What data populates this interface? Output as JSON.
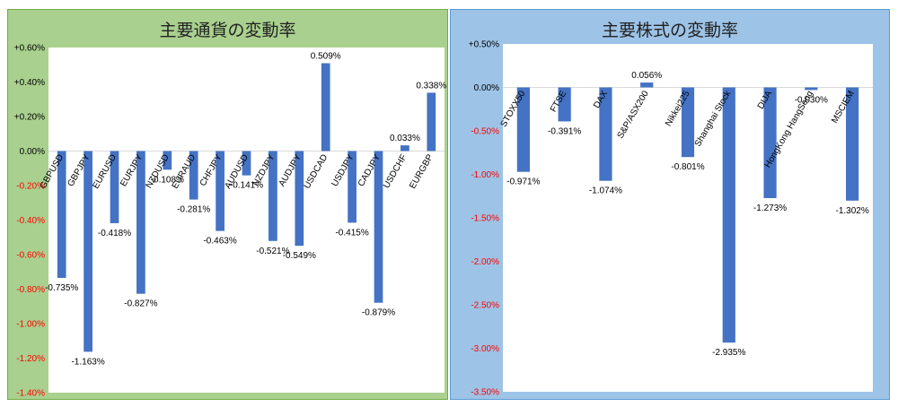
{
  "charts": [
    {
      "title": "主要通貨の変動率",
      "chart_data": {
        "type": "bar",
        "title": "主要通貨の変動率",
        "categories": [
          "GBPUSD",
          "GBPJPY",
          "EURUSD",
          "EURJPY",
          "NZDUSD",
          "EURAUD",
          "CHFJPY",
          "AUDUSD",
          "NZDJPY",
          "AUDJPY",
          "USDCAD",
          "USDJPY",
          "CADJPY",
          "USDCHF",
          "EURGBP"
        ],
        "values": [
          -0.735,
          -1.163,
          -0.418,
          -0.827,
          -0.108,
          -0.281,
          -0.463,
          -0.141,
          -0.521,
          -0.549,
          0.509,
          -0.415,
          -0.879,
          0.033,
          0.338
        ],
        "data_labels": [
          "-0.735%",
          "-1.163%",
          "-0.418%",
          "-0.827%",
          "-0.108%",
          "-0.281%",
          "-0.463%",
          "-0.141%",
          "-0.521%",
          "-0.549%",
          "0.509%",
          "-0.415%",
          "-0.879%",
          "0.033%",
          "0.338%"
        ],
        "ylim": [
          -1.4,
          0.6
        ],
        "yticks": [
          0.6,
          0.4,
          0.2,
          0,
          -0.2,
          -0.4,
          -0.6,
          -0.8,
          -1.0,
          -1.2,
          -1.4
        ],
        "ytick_labels": [
          "+0.60%",
          "+0.40%",
          "+0.20%",
          "0.00%",
          "-0.20%",
          "-0.40%",
          "-0.60%",
          "-0.80%",
          "-1.00%",
          "-1.20%",
          "-1.40%"
        ],
        "ytick_colors": [
          "#000000",
          "#000000",
          "#000000",
          "#000000",
          "#ff0000",
          "#ff0000",
          "#ff0000",
          "#ff0000",
          "#ff0000",
          "#ff0000",
          "#ff0000"
        ],
        "bar_color": "#4472c4",
        "grid": false
      }
    },
    {
      "title": "主要株式の変動率",
      "chart_data": {
        "type": "bar",
        "title": "主要株式の変動率",
        "categories": [
          "STOXX50",
          "FTSE",
          "DAX",
          "S&P/ASX200",
          "Nikkei225",
          "Shanghai Stock",
          "DIJA",
          "HongKong HangSeng",
          "MSCIEM"
        ],
        "values": [
          -0.971,
          -0.391,
          -1.074,
          0.056,
          -0.801,
          -2.935,
          -1.273,
          -0.03,
          -1.302
        ],
        "data_labels": [
          "-0.971%",
          "-0.391%",
          "-1.074%",
          "0.056%",
          "-0.801%",
          "-2.935%",
          "-1.273%",
          "-0.030%",
          "-1.302%"
        ],
        "ylim": [
          -3.5,
          0.5
        ],
        "yticks": [
          0.5,
          0,
          -0.5,
          -1.0,
          -1.5,
          -2.0,
          -2.5,
          -3.0,
          -3.5
        ],
        "ytick_labels": [
          "+0.50%",
          "0.00%",
          "-0.50%",
          "-1.00%",
          "-1.50%",
          "-2.00%",
          "-2.50%",
          "-3.00%",
          "-3.50%"
        ],
        "ytick_colors": [
          "#000000",
          "#000000",
          "#ff0000",
          "#ff0000",
          "#ff0000",
          "#ff0000",
          "#ff0000",
          "#ff0000",
          "#ff0000"
        ],
        "bar_color": "#4472c4",
        "grid": false
      }
    }
  ]
}
